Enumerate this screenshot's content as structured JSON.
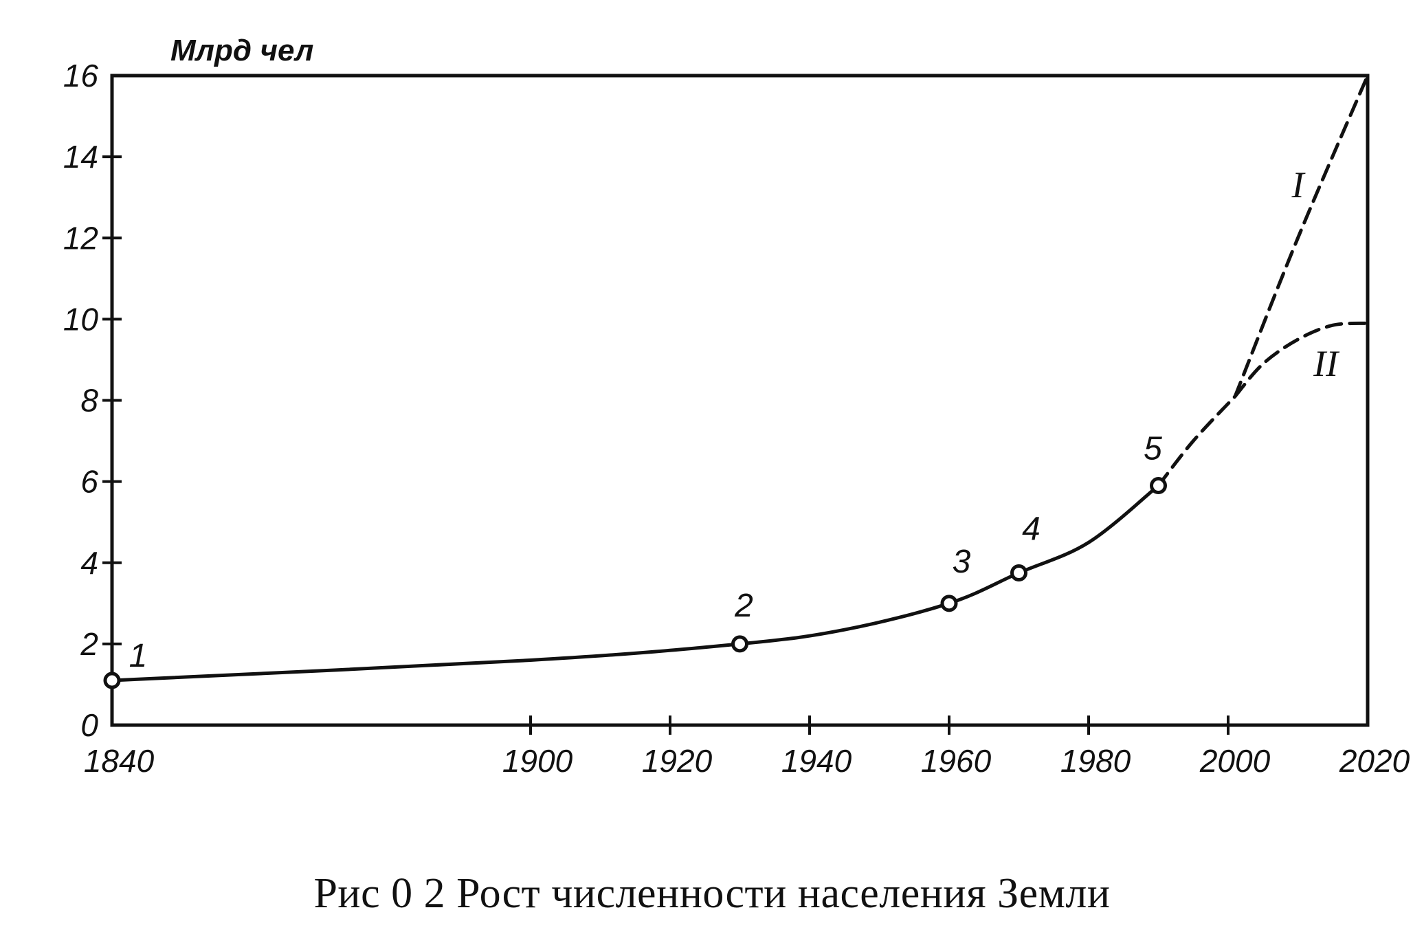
{
  "chart_data": {
    "type": "line",
    "ylabel": "Млрд чел",
    "xlim": [
      1840,
      2020
    ],
    "ylim": [
      0,
      16
    ],
    "x_ticks": [
      1840,
      1900,
      1920,
      1940,
      1960,
      1980,
      2000,
      2020
    ],
    "y_ticks": [
      0,
      2,
      4,
      6,
      8,
      10,
      12,
      14,
      16
    ],
    "grid": false,
    "series": [
      {
        "style": "solid",
        "points": [
          {
            "x": 1840,
            "y": 1.1
          },
          {
            "x": 1900,
            "y": 1.6
          },
          {
            "x": 1930,
            "y": 2.0
          },
          {
            "x": 1945,
            "y": 2.35
          },
          {
            "x": 1960,
            "y": 3.0
          },
          {
            "x": 1970,
            "y": 3.75
          },
          {
            "x": 1980,
            "y": 4.5
          },
          {
            "x": 1990,
            "y": 5.9
          }
        ]
      },
      {
        "style": "dashed",
        "points": [
          {
            "x": 1990,
            "y": 5.9
          },
          {
            "x": 1995,
            "y": 7.0
          },
          {
            "x": 2001,
            "y": 8.1
          }
        ]
      },
      {
        "name": "I",
        "style": "dashed",
        "points": [
          {
            "x": 2001,
            "y": 8.1
          },
          {
            "x": 2010,
            "y": 12.0
          },
          {
            "x": 2020,
            "y": 16.0
          }
        ]
      },
      {
        "name": "II",
        "style": "dashed",
        "points": [
          {
            "x": 2001,
            "y": 8.1
          },
          {
            "x": 2005,
            "y": 8.9
          },
          {
            "x": 2010,
            "y": 9.5
          },
          {
            "x": 2015,
            "y": 9.85
          },
          {
            "x": 2020,
            "y": 9.9
          }
        ]
      }
    ],
    "markers": [
      {
        "label": "1",
        "x": 1840,
        "y": 1.1
      },
      {
        "label": "2",
        "x": 1930,
        "y": 2.0
      },
      {
        "label": "3",
        "x": 1960,
        "y": 3.0
      },
      {
        "label": "4",
        "x": 1970,
        "y": 3.75
      },
      {
        "label": "5",
        "x": 1990,
        "y": 5.9
      }
    ]
  },
  "caption": "Рис  0 2  Рост численности населения Земли"
}
